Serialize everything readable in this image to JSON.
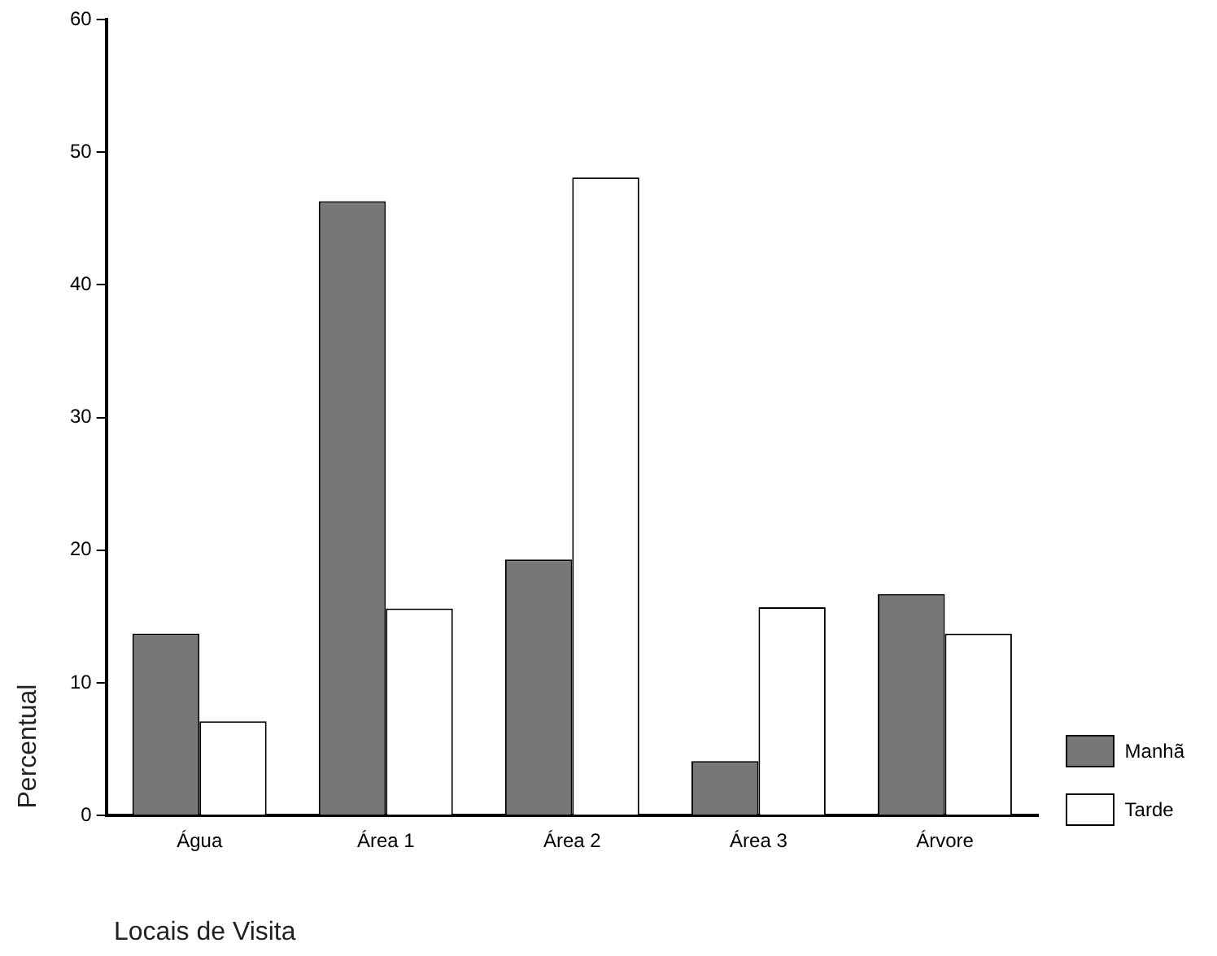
{
  "chart_data": {
    "type": "bar",
    "xlabel": "Locais de Visita",
    "ylabel": "Percentual",
    "categories": [
      "Água",
      "Área 1",
      "Área 2",
      "Área 3",
      "Árvore"
    ],
    "series": [
      {
        "name": "Manhã",
        "color": "#777777",
        "values": [
          13.7,
          46.3,
          19.3,
          4.1,
          16.7
        ]
      },
      {
        "name": "Tarde",
        "color": "#ffffff",
        "values": [
          7.1,
          15.6,
          48.1,
          15.7,
          13.7
        ]
      }
    ],
    "ylim": [
      0,
      60
    ],
    "yticks": [
      0,
      10,
      20,
      30,
      40,
      50,
      60
    ],
    "grid": false,
    "legend": "right"
  }
}
